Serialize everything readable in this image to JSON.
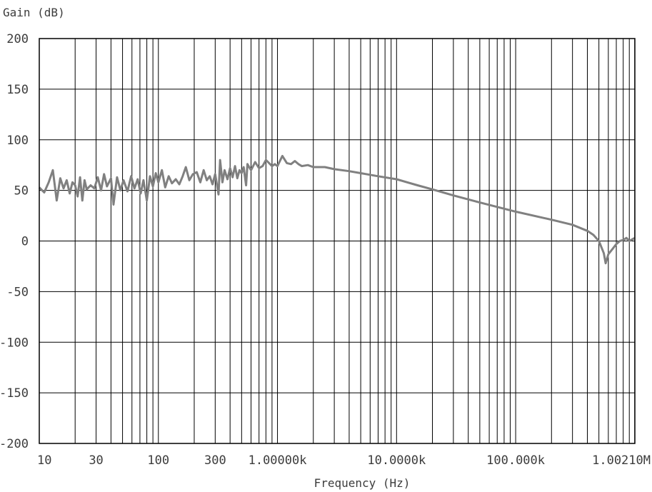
{
  "chart_data": {
    "type": "line",
    "ylabel": "Gain (dB)",
    "xlabel": "Frequency (Hz)",
    "x_scale": "log",
    "xlim": [
      10,
      1002100
    ],
    "ylim": [
      -200,
      200
    ],
    "grid": true,
    "x_tick_labels": [
      {
        "value": 10,
        "label": "10"
      },
      {
        "value": 30,
        "label": "30"
      },
      {
        "value": 100,
        "label": "100"
      },
      {
        "value": 300,
        "label": "300"
      },
      {
        "value": 1000,
        "label": "1.00000k"
      },
      {
        "value": 10000,
        "label": "10.0000k"
      },
      {
        "value": 100000,
        "label": "100.000k"
      },
      {
        "value": 1002100,
        "label": "1.00210M"
      }
    ],
    "y_tick_labels": [
      {
        "value": 200,
        "label": "200"
      },
      {
        "value": 150,
        "label": "150"
      },
      {
        "value": 100,
        "label": "100"
      },
      {
        "value": 50,
        "label": "50"
      },
      {
        "value": 0,
        "label": "0"
      },
      {
        "value": -50,
        "label": "-50"
      },
      {
        "value": -100,
        "label": "-100"
      },
      {
        "value": -150,
        "label": "-150"
      },
      {
        "value": -200,
        "label": "-200"
      }
    ],
    "series": [
      {
        "color": "#808080",
        "points": [
          [
            10,
            53
          ],
          [
            11,
            48
          ],
          [
            12,
            58
          ],
          [
            13,
            70
          ],
          [
            14,
            40
          ],
          [
            15,
            62
          ],
          [
            16,
            52
          ],
          [
            17,
            60
          ],
          [
            18,
            47
          ],
          [
            19,
            58
          ],
          [
            20,
            55
          ],
          [
            21,
            44
          ],
          [
            22,
            63
          ],
          [
            23,
            40
          ],
          [
            24,
            60
          ],
          [
            25,
            51
          ],
          [
            27,
            55
          ],
          [
            29,
            52
          ],
          [
            31,
            63
          ],
          [
            33,
            50
          ],
          [
            35,
            66
          ],
          [
            37,
            54
          ],
          [
            40,
            62
          ],
          [
            42,
            36
          ],
          [
            45,
            63
          ],
          [
            48,
            50
          ],
          [
            51,
            60
          ],
          [
            55,
            49
          ],
          [
            59,
            64
          ],
          [
            63,
            52
          ],
          [
            67,
            61
          ],
          [
            71,
            47
          ],
          [
            75,
            60
          ],
          [
            80,
            40
          ],
          [
            85,
            64
          ],
          [
            90,
            54
          ],
          [
            95,
            67
          ],
          [
            100,
            58
          ],
          [
            107,
            70
          ],
          [
            114,
            53
          ],
          [
            122,
            64
          ],
          [
            130,
            57
          ],
          [
            140,
            61
          ],
          [
            150,
            56
          ],
          [
            160,
            64
          ],
          [
            170,
            73
          ],
          [
            182,
            60
          ],
          [
            195,
            66
          ],
          [
            210,
            68
          ],
          [
            225,
            58
          ],
          [
            240,
            70
          ],
          [
            255,
            60
          ],
          [
            270,
            64
          ],
          [
            285,
            56
          ],
          [
            300,
            66
          ],
          [
            320,
            46
          ],
          [
            330,
            80
          ],
          [
            345,
            58
          ],
          [
            360,
            70
          ],
          [
            380,
            61
          ],
          [
            400,
            72
          ],
          [
            420,
            63
          ],
          [
            440,
            74
          ],
          [
            460,
            62
          ],
          [
            480,
            70
          ],
          [
            500,
            67
          ],
          [
            520,
            73
          ],
          [
            545,
            55
          ],
          [
            560,
            76
          ],
          [
            600,
            70
          ],
          [
            650,
            78
          ],
          [
            700,
            72
          ],
          [
            750,
            74
          ],
          [
            800,
            80
          ],
          [
            850,
            77
          ],
          [
            900,
            74
          ],
          [
            950,
            76
          ],
          [
            1000,
            74
          ],
          [
            1100,
            84
          ],
          [
            1200,
            77
          ],
          [
            1300,
            76
          ],
          [
            1400,
            79
          ],
          [
            1500,
            76
          ],
          [
            1600,
            74
          ],
          [
            1800,
            75
          ],
          [
            2000,
            73
          ],
          [
            2500,
            73
          ],
          [
            3000,
            71
          ],
          [
            4000,
            69
          ],
          [
            5000,
            67
          ],
          [
            7000,
            64
          ],
          [
            10000,
            61
          ],
          [
            15000,
            55
          ],
          [
            20000,
            51
          ],
          [
            30000,
            45
          ],
          [
            50000,
            38
          ],
          [
            100000,
            29
          ],
          [
            200000,
            21
          ],
          [
            300000,
            16
          ],
          [
            400000,
            10
          ],
          [
            450000,
            6
          ],
          [
            500000,
            0
          ],
          [
            520000,
            -5
          ],
          [
            550000,
            -12
          ],
          [
            570000,
            -22
          ],
          [
            600000,
            -13
          ],
          [
            650000,
            -8
          ],
          [
            700000,
            -3
          ],
          [
            750000,
            0
          ],
          [
            800000,
            1
          ],
          [
            850000,
            3
          ],
          [
            900000,
            0
          ],
          [
            1002100,
            3
          ]
        ]
      }
    ]
  }
}
